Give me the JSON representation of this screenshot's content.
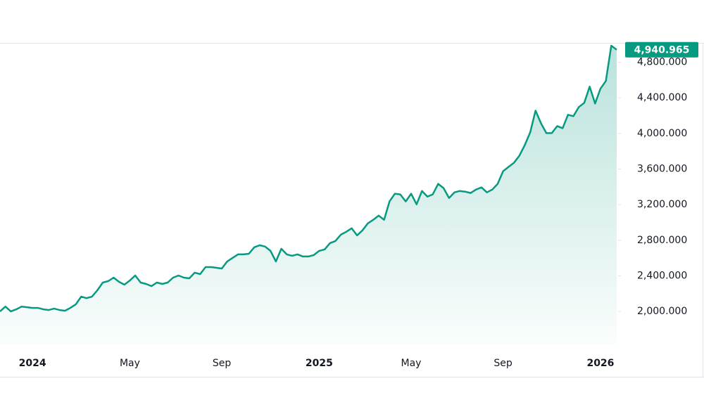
{
  "chart_data": {
    "type": "area-line",
    "color": "#089981",
    "categories": [
      null,
      null,
      null,
      null,
      null,
      null,
      "2024",
      null,
      null,
      null,
      null,
      null,
      null,
      null,
      null,
      null,
      null,
      null,
      null,
      null,
      null,
      null,
      null,
      null,
      "May",
      null,
      null,
      null,
      null,
      null,
      null,
      null,
      null,
      null,
      null,
      null,
      null,
      null,
      null,
      null,
      null,
      "Sep",
      null,
      null,
      null,
      null,
      null,
      null,
      null,
      null,
      null,
      null,
      null,
      null,
      null,
      null,
      null,
      null,
      null,
      "2025",
      null,
      null,
      null,
      null,
      null,
      null,
      null,
      null,
      null,
      null,
      null,
      null,
      null,
      null,
      null,
      null,
      "May",
      null,
      null,
      null,
      null,
      null,
      null,
      null,
      null,
      null,
      null,
      null,
      null,
      null,
      null,
      null,
      null,
      "Sep",
      null,
      null,
      null,
      null,
      null,
      null,
      null,
      null,
      null,
      null,
      null,
      null,
      null,
      null,
      null,
      null,
      null,
      "2026",
      null,
      null,
      null
    ],
    "values": [
      2000,
      2055,
      2000,
      2024,
      2055,
      2048,
      2040,
      2040,
      2024,
      2016,
      2032,
      2016,
      2008,
      2040,
      2079,
      2166,
      2150,
      2166,
      2238,
      2325,
      2341,
      2380,
      2333,
      2301,
      2348,
      2404,
      2325,
      2309,
      2285,
      2325,
      2309,
      2325,
      2380,
      2404,
      2380,
      2372,
      2436,
      2420,
      2499,
      2499,
      2491,
      2483,
      2562,
      2602,
      2642,
      2642,
      2649,
      2721,
      2744,
      2729,
      2681,
      2562,
      2705,
      2642,
      2626,
      2642,
      2618,
      2618,
      2634,
      2681,
      2697,
      2768,
      2792,
      2863,
      2895,
      2935,
      2855,
      2911,
      2990,
      3030,
      3077,
      3030,
      3236,
      3323,
      3315,
      3236,
      3323,
      3204,
      3354,
      3291,
      3315,
      3434,
      3386,
      3275,
      3338,
      3354,
      3346,
      3331,
      3370,
      3394,
      3338,
      3370,
      3434,
      3576,
      3624,
      3671,
      3750,
      3869,
      4012,
      4257,
      4115,
      4004,
      4004,
      4083,
      4059,
      4210,
      4194,
      4297,
      4344,
      4526,
      4336,
      4503,
      4590,
      4986,
      4940.965
    ],
    "value_labels": [
      null,
      null,
      null,
      null,
      null,
      null,
      null,
      null,
      null,
      null,
      null,
      null,
      null,
      null,
      null,
      null,
      null,
      null,
      null,
      null,
      null,
      null,
      null,
      null,
      null,
      null,
      null,
      null,
      null,
      null,
      null,
      null,
      null,
      null,
      null,
      null,
      null,
      null,
      null,
      null,
      null,
      null,
      null,
      null,
      null,
      null,
      null,
      null,
      null,
      null,
      null,
      null,
      null,
      null,
      null,
      null,
      null,
      null,
      null,
      null,
      null,
      null,
      null,
      null,
      null,
      null,
      null,
      null,
      null,
      null,
      null,
      null,
      null,
      null,
      null,
      null,
      null,
      null,
      null,
      null,
      null,
      null,
      null,
      null,
      null,
      null,
      null,
      null,
      null,
      null,
      null,
      null,
      null,
      null,
      null,
      null,
      null,
      null,
      null,
      null,
      null,
      null,
      null,
      null,
      null,
      null,
      null,
      null,
      null,
      null,
      null,
      null,
      null,
      null,
      "4,940.965"
    ],
    "ylim": [
      1630,
      5010
    ],
    "yticks": [
      {
        "value": 2000,
        "label": "2,000.000"
      },
      {
        "value": 2400,
        "label": "2,400.000"
      },
      {
        "value": 2800,
        "label": "2,800.000"
      },
      {
        "value": 3200,
        "label": "3,200.000"
      },
      {
        "value": 3600,
        "label": "3,600.000"
      },
      {
        "value": 4000,
        "label": "4,000.000"
      },
      {
        "value": 4400,
        "label": "4,400.000"
      },
      {
        "value": 4800,
        "label": "4,800.000"
      }
    ]
  }
}
